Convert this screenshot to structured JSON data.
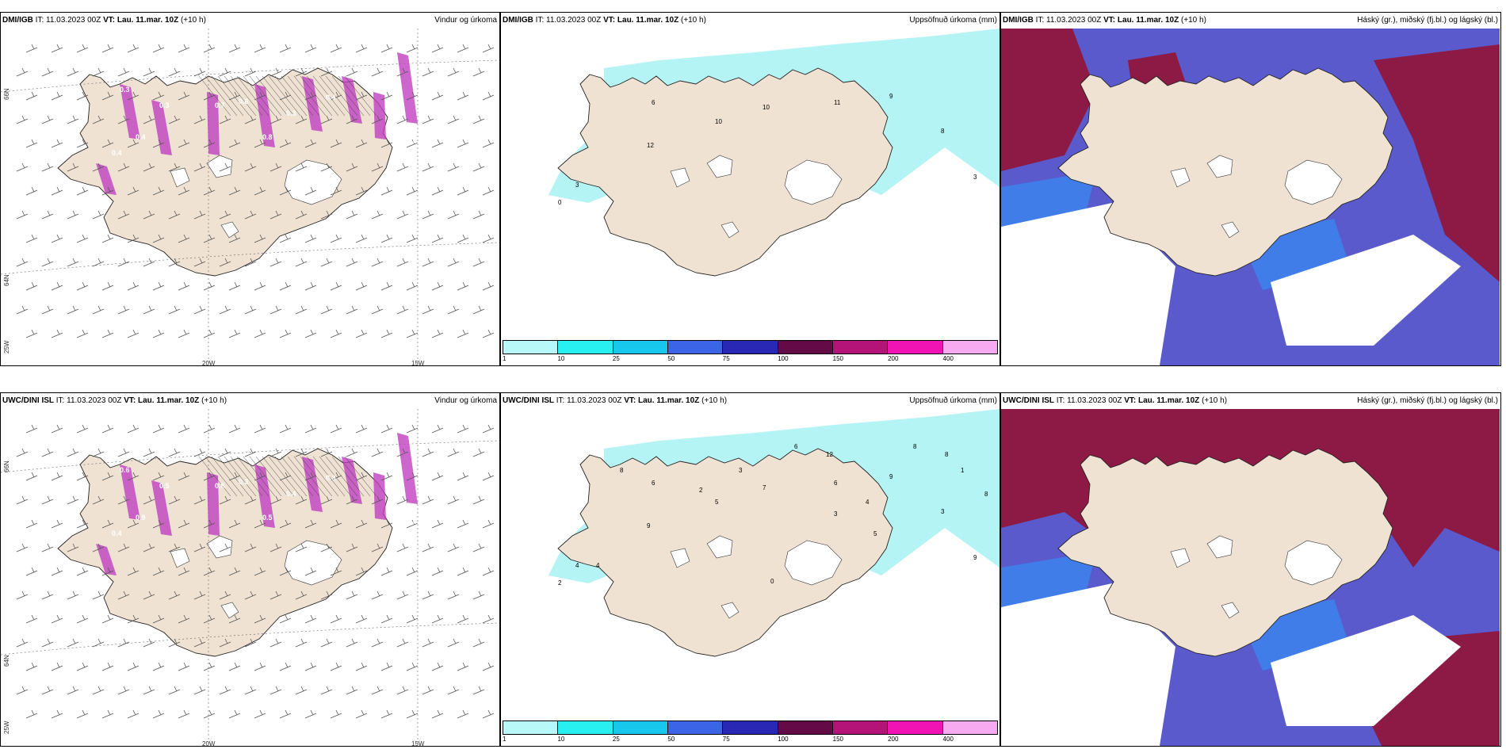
{
  "rows": [
    {
      "model": "DMI/IGB",
      "panels": [
        {
          "type": "wind",
          "it_label": "IT:",
          "it": "11.03.2023 00Z",
          "vt_label": "VT:",
          "vt": "Lau. 11.mar. 10Z",
          "lead": "(+10 h)",
          "title": "Vindur og úrkoma",
          "values": [
            "0.3",
            "0.3",
            "0.3",
            "0.4",
            "0.4",
            "0.6",
            "0.7",
            "0.8",
            "0.3",
            "0.4",
            "0.3",
            "0.3",
            "0.7"
          ]
        },
        {
          "type": "precip",
          "it_label": "IT:",
          "it": "11.03.2023 00Z",
          "vt_label": "VT:",
          "vt": "Lau. 11.mar. 10Z",
          "lead": "(+10 h)",
          "title": "Uppsöfnuð úrkoma (mm)",
          "values": [
            "0",
            "3",
            "6",
            "12",
            "10",
            "10",
            "11",
            "9",
            "8",
            "3"
          ]
        },
        {
          "type": "cloud",
          "it_label": "IT:",
          "it": "11.03.2023 00Z",
          "vt_label": "VT:",
          "vt": "Lau. 11.mar. 10Z",
          "lead": "(+10 h)",
          "title": "Háský (gr.), miðský (fj.bl.) og lágský (bl.)"
        }
      ]
    },
    {
      "model": "UWC/DINI ISL",
      "panels": [
        {
          "type": "wind",
          "it_label": "IT:",
          "it": "11.03.2023 00Z",
          "vt_label": "VT:",
          "vt": "Lau. 11.mar. 10Z",
          "lead": "(+10 h)",
          "title": "Vindur og úrkoma",
          "values": [
            "0.3",
            "0.6",
            "0.5",
            "0.9",
            "0.4",
            "0.3",
            "0.8",
            "0.5",
            "0.4",
            "0.3",
            "0.6",
            "0.4",
            "0.5",
            "0.7"
          ]
        },
        {
          "type": "precip",
          "it_label": "IT:",
          "it": "11.03.2023 00Z",
          "vt_label": "VT:",
          "vt": "Lau. 11.mar. 10Z",
          "lead": "(+10 h)",
          "title": "Uppsöfnuð úrkoma (mm)",
          "values": [
            "2",
            "4",
            "6",
            "9",
            "5",
            "7",
            "6",
            "9",
            "3",
            "9",
            "6",
            "12",
            "3",
            "2",
            "3",
            "4",
            "8",
            "1",
            "5",
            "0",
            "4",
            "8",
            "8",
            "8"
          ]
        },
        {
          "type": "cloud",
          "it_label": "IT:",
          "it": "11.03.2023 00Z",
          "vt_label": "VT:",
          "vt": "Lau. 11.mar. 10Z",
          "lead": "(+10 h)",
          "title": "Háský (gr.), miðský (fj.bl.) og lágský (bl.)"
        }
      ]
    }
  ],
  "axis_labels": {
    "lon_20w": "20W",
    "lon_15w": "15W",
    "lat_66n": "66N",
    "lat_64n": "64N",
    "lon_25w": "25W"
  },
  "colorbar": {
    "ticks": [
      "1",
      "10",
      "25",
      "50",
      "75",
      "100",
      "150",
      "200",
      "400"
    ],
    "colors": [
      "#b8f8f8",
      "#28f0f0",
      "#18c8ec",
      "#3c64e6",
      "#2828b4",
      "#640a46",
      "#b41478",
      "#f014b4",
      "#f8aaf0"
    ]
  },
  "palette": {
    "land": "#efe2d3",
    "precip_purple": "#c040c0",
    "precip_light_cyan": "#b4f4f4",
    "cloud_high": "#8c1a44",
    "cloud_mid": "#5a5acc",
    "cloud_low": "#3a86f0"
  }
}
